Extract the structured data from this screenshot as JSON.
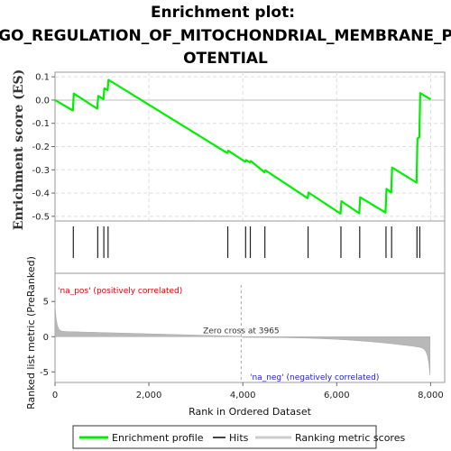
{
  "chart_data": {
    "type": "line",
    "title_lines": [
      "Enrichment plot:",
      "GO_REGULATION_OF_MITOCHONDRIAL_MEMBRANE_P",
      "OTENTIAL"
    ],
    "es_panel": {
      "ylabel": "Enrichment score (ES)",
      "ylim": [
        -0.52,
        0.12
      ],
      "yticks": [
        0.1,
        0.0,
        -0.1,
        -0.2,
        -0.3,
        -0.4,
        -0.5
      ],
      "ytick_labels": [
        "0.1",
        "0.0",
        "-0.1",
        "-0.2",
        "-0.3",
        "-0.4",
        "-0.5"
      ],
      "grid": true,
      "series": [
        {
          "name": "Enrichment profile",
          "color": "#00ee00",
          "x": [
            0,
            380,
            400,
            900,
            920,
            1030,
            1050,
            1120,
            1140,
            3670,
            3690,
            4050,
            4070,
            4150,
            4170,
            4460,
            4480,
            5380,
            5400,
            6080,
            6100,
            6480,
            6500,
            7040,
            7060,
            7160,
            7180,
            7700,
            7720,
            7760,
            7780,
            8000
          ],
          "y": [
            0.0,
            -0.045,
            0.028,
            -0.037,
            0.018,
            0.004,
            0.05,
            0.043,
            0.087,
            -0.228,
            -0.218,
            -0.265,
            -0.258,
            -0.268,
            -0.262,
            -0.31,
            -0.302,
            -0.422,
            -0.398,
            -0.488,
            -0.435,
            -0.487,
            -0.418,
            -0.484,
            -0.382,
            -0.398,
            -0.29,
            -0.355,
            -0.165,
            -0.16,
            0.03,
            0.003
          ]
        }
      ]
    },
    "hits_panel": {
      "name": "Hits",
      "positions": [
        390,
        910,
        1040,
        1130,
        3680,
        4060,
        4160,
        4470,
        5390,
        6090,
        6490,
        7050,
        7170,
        7710,
        7770
      ]
    },
    "rank_panel": {
      "ylabel": "Ranked list metric (PreRanked)",
      "xlabel": "Rank in Ordered Dataset",
      "ylim": [
        -6.5,
        9
      ],
      "yticks": [
        5,
        0,
        -5
      ],
      "ytick_labels": [
        "5",
        "0",
        "-5"
      ],
      "xticks": [
        0,
        2000,
        4000,
        6000,
        8000
      ],
      "xtick_labels": [
        "0",
        "2,000",
        "4,000",
        "6,000",
        "8,000"
      ],
      "xlim": [
        0,
        8300
      ],
      "n_genes": 7990,
      "zero_cross": 3965,
      "zero_cross_label": "Zero cross at 3965",
      "pos_label": "'na_pos' (positively correlated)",
      "neg_label": "'na_neg' (negatively correlated)",
      "pos_color": "#e00000",
      "neg_color": "#2222cc",
      "series_name": "Ranking metric scores"
    },
    "legend": {
      "items": [
        "Enrichment profile",
        "Hits",
        "Ranking metric scores"
      ]
    }
  }
}
